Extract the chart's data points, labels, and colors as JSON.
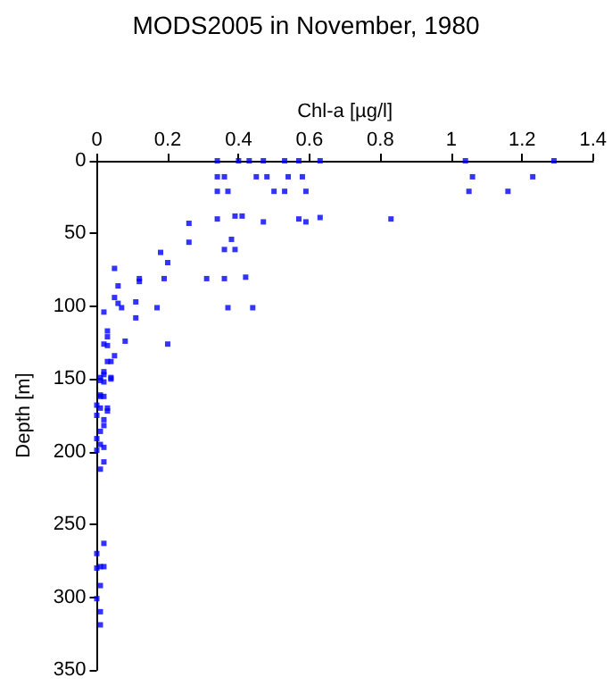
{
  "chart_data": {
    "type": "scatter",
    "title": "MODS2005 in November, 1980",
    "xlabel": "Chl-a [µg/l]",
    "ylabel": "Depth [m]",
    "xlim": [
      0,
      1.4
    ],
    "xticks": [
      0,
      0.2,
      0.4,
      0.6,
      0.8,
      1,
      1.2,
      1.4
    ],
    "ylim": [
      350,
      0
    ],
    "yticks": [
      0,
      50,
      100,
      150,
      200,
      250,
      300,
      350
    ],
    "grid": false,
    "marker": "square",
    "series": [
      {
        "color": "#0000ff",
        "x": [
          0.34,
          0.4,
          0.43,
          0.47,
          0.53,
          0.57,
          0.63,
          1.04,
          1.29,
          0.34,
          0.36,
          0.45,
          0.48,
          0.54,
          0.58,
          1.06,
          1.23,
          0.34,
          0.37,
          0.5,
          0.53,
          0.59,
          1.05,
          1.16,
          0.26,
          0.34,
          0.39,
          0.41,
          0.47,
          0.57,
          0.59,
          0.63,
          0.83,
          0.26,
          0.38,
          0.18,
          0.2,
          0.05,
          0.12,
          0.12,
          0.19,
          0.31,
          0.36,
          0.39,
          0.36,
          0.42,
          0.06,
          0.05,
          0.06,
          0.07,
          0.11,
          0.11,
          0.17,
          0.37,
          0.44,
          0.02,
          0.2,
          0.08,
          0.03,
          0.03,
          0.02,
          0.03,
          0.05,
          0.04,
          0.03,
          0.04,
          0.01,
          0.02,
          0.02,
          0.01,
          0.02,
          0.01,
          0.03,
          0.02,
          0.04,
          0.01,
          0.01,
          0.0,
          0.03,
          0.0,
          0.02,
          0.02,
          0.01,
          0.0,
          0.01,
          0.02,
          0.0,
          0.02,
          0.01,
          0.02,
          0.0,
          0.01,
          0.02,
          0.0,
          0.01,
          0.0,
          0.01,
          0.01
        ],
        "values": [
          0,
          0,
          0,
          0,
          0,
          0,
          0,
          0,
          0,
          11,
          11,
          11,
          11,
          11,
          11,
          11,
          11,
          21,
          21,
          21,
          21,
          21,
          21,
          21,
          43,
          40,
          38,
          38,
          42,
          40,
          42,
          39,
          40,
          56,
          54,
          63,
          70,
          74,
          81,
          83,
          81,
          81,
          61,
          61,
          81,
          80,
          86,
          94,
          98,
          101,
          97,
          108,
          101,
          101,
          101,
          104,
          126,
          124,
          117,
          121,
          126,
          127,
          134,
          138,
          138,
          149,
          149,
          152,
          145,
          162,
          162,
          170,
          172,
          147,
          150,
          151,
          161,
          168,
          170,
          175,
          178,
          182,
          186,
          191,
          195,
          197,
          199,
          207,
          212,
          263,
          270,
          279,
          279,
          280,
          292,
          301,
          310,
          319
        ]
      }
    ]
  }
}
